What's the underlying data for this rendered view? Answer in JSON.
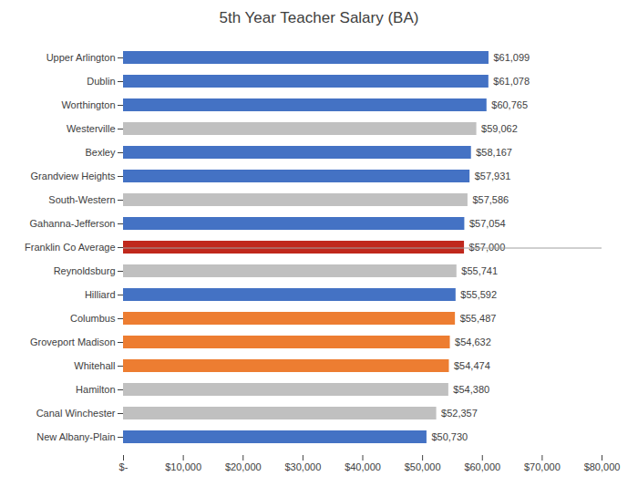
{
  "chart_data": {
    "type": "bar",
    "orientation": "horizontal",
    "title": "5th Year Teacher Salary (BA)",
    "categories": [
      "Upper Arlington",
      "Dublin",
      "Worthington",
      "Westerville",
      "Bexley",
      "Grandview Heights",
      "South-Western",
      "Gahanna-Jefferson",
      "Franklin Co Average",
      "Reynoldsburg",
      "Hilliard",
      "Columbus",
      "Groveport Madison",
      "Whitehall",
      "Hamilton",
      "Canal Winchester",
      "New Albany-Plain"
    ],
    "values": [
      61099,
      61078,
      60765,
      59062,
      58167,
      57931,
      57586,
      57054,
      57000,
      55741,
      55592,
      55487,
      54632,
      54474,
      54380,
      52357,
      50730
    ],
    "value_labels": [
      "$61,099",
      "$61,078",
      "$60,765",
      "$59,062",
      "$58,167",
      "$57,931",
      "$57,586",
      "$57,054",
      "$57,000",
      "$55,741",
      "$55,592",
      "$55,487",
      "$54,632",
      "$54,474",
      "$54,380",
      "$52,357",
      "$50,730"
    ],
    "colors": [
      "#4472C4",
      "#4472C4",
      "#4472C4",
      "#C0C0C0",
      "#4472C4",
      "#4472C4",
      "#C0C0C0",
      "#4472C4",
      "#C0281C",
      "#C0C0C0",
      "#4472C4",
      "#ED7D31",
      "#ED7D31",
      "#ED7D31",
      "#C0C0C0",
      "#C0C0C0",
      "#4472C4"
    ],
    "xlim": [
      0,
      80000
    ],
    "xticks": [
      {
        "value": 0,
        "label": "$-"
      },
      {
        "value": 10000,
        "label": "$10,000"
      },
      {
        "value": 20000,
        "label": "$20,000"
      },
      {
        "value": 30000,
        "label": "$30,000"
      },
      {
        "value": 40000,
        "label": "$40,000"
      },
      {
        "value": 50000,
        "label": "$50,000"
      },
      {
        "value": 60000,
        "label": "$60,000"
      },
      {
        "value": 70000,
        "label": "$70,000"
      },
      {
        "value": 80000,
        "label": "$80,000"
      }
    ],
    "data_labels": true,
    "grid": false
  }
}
